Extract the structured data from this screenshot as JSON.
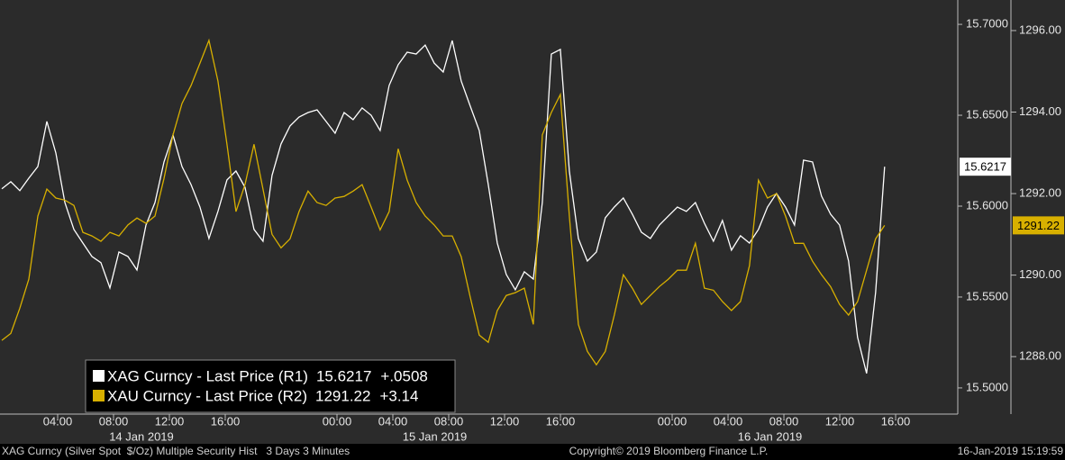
{
  "chart_data": {
    "type": "line",
    "x": [
      0,
      0.645,
      1.29,
      1.935,
      2.58,
      3.225,
      3.87,
      4.515,
      5.16,
      5.805,
      6.45,
      7.095,
      7.74,
      8.385,
      9.03,
      9.675,
      10.32,
      10.965,
      11.61,
      12.255,
      12.9,
      13.545,
      14.19,
      14.835,
      15.48,
      16.125,
      16.77,
      17.415,
      18.06,
      18.705,
      19.35,
      19.995,
      20.64,
      21.285,
      21.93,
      22.575,
      23.22,
      23.865,
      24.51,
      25.155,
      25.8,
      26.445,
      27.09,
      27.735,
      28.38,
      29.025,
      29.67,
      30.315,
      30.96,
      31.605,
      32.25,
      32.895,
      33.54,
      34.185,
      34.83,
      35.475,
      36.12,
      36.765,
      37.41,
      38.055,
      38.7,
      39.345,
      39.99,
      40.635,
      41.28,
      41.925,
      42.57,
      43.215,
      43.86,
      44.505,
      45.15,
      45.795,
      46.44,
      47.085,
      47.73,
      48.375,
      49.02,
      49.665,
      50.31,
      50.955,
      51.6,
      52.245,
      52.89,
      53.535,
      54.18,
      54.825,
      55.47,
      56.115,
      56.76,
      57.405,
      58.05,
      58.695,
      59.34,
      59.985,
      60.63,
      61.275,
      61.92,
      62.565,
      63.21
    ],
    "series": [
      {
        "name": "XAG Curncy - Last Price (R1)",
        "color": "#ffffff",
        "axis": "y",
        "last_value": 15.6217,
        "change": "+.0508",
        "values": [
          15.6095,
          15.6134,
          15.6085,
          15.6154,
          15.6218,
          15.6466,
          15.6292,
          15.602,
          15.5872,
          15.5797,
          15.5723,
          15.5689,
          15.555,
          15.5748,
          15.5723,
          15.5649,
          15.5896,
          15.602,
          15.6243,
          15.6391,
          15.6218,
          15.6119,
          15.5995,
          15.5822,
          15.5971,
          15.6144,
          15.6193,
          15.6104,
          15.5872,
          15.5807,
          15.6169,
          15.6342,
          15.6441,
          15.649,
          15.6515,
          15.653,
          15.6466,
          15.6401,
          15.6515,
          15.6476,
          15.654,
          15.65,
          15.6416,
          15.6664,
          15.6778,
          15.6847,
          15.6837,
          15.6886,
          15.6787,
          15.6738,
          15.6911,
          15.6688,
          15.655,
          15.6416,
          15.6119,
          15.5797,
          15.5624,
          15.554,
          15.5639,
          15.5599,
          15.602,
          15.6837,
          15.6862,
          15.6193,
          15.5822,
          15.5698,
          15.5748,
          15.5936,
          15.5995,
          15.6045,
          15.5956,
          15.5857,
          15.5822,
          15.5896,
          15.5946,
          15.5995,
          15.5971,
          15.602,
          15.5906,
          15.5807,
          15.5921,
          15.5758,
          15.5837,
          15.5797,
          15.5872,
          15.5995,
          15.607,
          15.5995,
          15.5896,
          15.6253,
          15.6243,
          15.6055,
          15.5956,
          15.5896,
          15.5698,
          15.5278,
          15.508,
          15.5525,
          15.6217
        ]
      },
      {
        "name": "XAU Curncy - Last Price (R2)",
        "color": "#d8b000",
        "axis": "y2",
        "last_value": 1291.22,
        "change": "+3.14",
        "values": [
          1288.4,
          1288.57,
          1289.19,
          1289.9,
          1291.45,
          1292.11,
          1291.89,
          1291.84,
          1291.71,
          1291.05,
          1290.96,
          1290.83,
          1291.05,
          1290.96,
          1291.23,
          1291.4,
          1291.27,
          1291.45,
          1292.37,
          1293.44,
          1294.21,
          1294.65,
          1295.2,
          1295.76,
          1294.76,
          1293.21,
          1291.56,
          1292.22,
          1293.21,
          1292.11,
          1291.0,
          1290.67,
          1290.89,
          1291.56,
          1292.06,
          1291.78,
          1291.71,
          1291.89,
          1291.93,
          1292.06,
          1292.22,
          1291.67,
          1291.11,
          1291.56,
          1293.1,
          1292.33,
          1291.78,
          1291.45,
          1291.23,
          1290.96,
          1290.96,
          1290.45,
          1289.46,
          1288.53,
          1288.35,
          1289.13,
          1289.5,
          1289.57,
          1289.68,
          1288.79,
          1293.44,
          1293.99,
          1294.43,
          1291.45,
          1288.79,
          1288.13,
          1287.8,
          1288.13,
          1289.02,
          1290.01,
          1289.68,
          1289.28,
          1289.5,
          1289.72,
          1289.9,
          1290.12,
          1290.12,
          1290.78,
          1289.68,
          1289.63,
          1289.35,
          1289.13,
          1289.35,
          1290.23,
          1292.33,
          1291.89,
          1292.0,
          1291.45,
          1290.78,
          1290.78,
          1290.34,
          1290.01,
          1289.72,
          1289.28,
          1289.02,
          1289.35,
          1290.12,
          1290.89,
          1291.22
        ]
      }
    ],
    "xlim": [
      -0.129,
      68.45
    ],
    "xticks": [
      {
        "value": 4,
        "label": "04:00"
      },
      {
        "value": 8,
        "label": "08:00"
      },
      {
        "value": 12,
        "label": "12:00"
      },
      {
        "value": 16,
        "label": "16:00"
      },
      {
        "value": 24,
        "label": "00:00"
      },
      {
        "value": 28,
        "label": "04:00"
      },
      {
        "value": 32,
        "label": "08:00"
      },
      {
        "value": 36,
        "label": "12:00"
      },
      {
        "value": 40,
        "label": "16:00"
      },
      {
        "value": 48,
        "label": "00:00"
      },
      {
        "value": 52,
        "label": "04:00"
      },
      {
        "value": 56,
        "label": "08:00"
      },
      {
        "value": 60,
        "label": "12:00"
      },
      {
        "value": 64,
        "label": "16:00"
      }
    ],
    "date_labels": [
      {
        "value": 10,
        "label": "14 Jan 2019"
      },
      {
        "value": 31,
        "label": "15 Jan 2019"
      },
      {
        "value": 55,
        "label": "16 Jan 2019"
      }
    ],
    "ylim": [
      15.4856,
      15.7134
    ],
    "yticks": [
      {
        "value": 15.5,
        "label": "15.5000"
      },
      {
        "value": 15.55,
        "label": "15.5500"
      },
      {
        "value": 15.6,
        "label": "15.6000"
      },
      {
        "value": 15.65,
        "label": "15.6500"
      },
      {
        "value": 15.7,
        "label": "15.7000"
      }
    ],
    "y2lim": [
      1286.59,
      1296.75
    ],
    "y2ticks": [
      {
        "value": 1288,
        "label": "1288.00"
      },
      {
        "value": 1290,
        "label": "1290.00"
      },
      {
        "value": 1292,
        "label": "1292.00"
      },
      {
        "value": 1294,
        "label": "1294.00"
      },
      {
        "value": 1296,
        "label": "1296.00"
      }
    ],
    "grid": false,
    "legend": "bottom-left"
  },
  "footer": {
    "left": "XAG Curncy (Silver Spot  $/Oz) Multiple Security Hist   3 Days 3 Minutes",
    "center": "Copyright© 2019 Bloomberg Finance L.P.",
    "right": "16-Jan-2019 15:19:59"
  }
}
